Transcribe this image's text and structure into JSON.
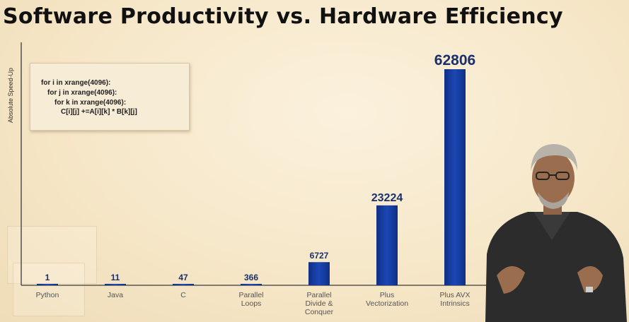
{
  "chart_data": {
    "type": "bar",
    "title": "Software Productivity vs. Hardware Efficiency",
    "ylabel": "Absolute Speed-Up",
    "xlabel": "",
    "categories": [
      "Python",
      "Java",
      "C",
      "Parallel Loops",
      "Parallel Divide & Conquer",
      "Plus Vectorization",
      "Plus AVX Intrinsics"
    ],
    "category_lines": [
      [
        "Python"
      ],
      [
        "Java"
      ],
      [
        "C"
      ],
      [
        "Parallel",
        "Loops"
      ],
      [
        "Parallel",
        "Divide &",
        "Conquer"
      ],
      [
        "Plus",
        "Vectorization"
      ],
      [
        "Plus AVX",
        "Intrinsics"
      ]
    ],
    "values": [
      1,
      11,
      47,
      366,
      6727,
      23224,
      62806
    ],
    "ylim": [
      0,
      62806
    ],
    "grid": false,
    "legend": "none",
    "bar_color": "#123a9a",
    "code_lines": [
      "for i in xrange(4096):",
      "for j in xrange(4096):",
      "for k in xrange(4096):",
      "C[i][j] +=A[i][k] * B[k][j]"
    ]
  }
}
